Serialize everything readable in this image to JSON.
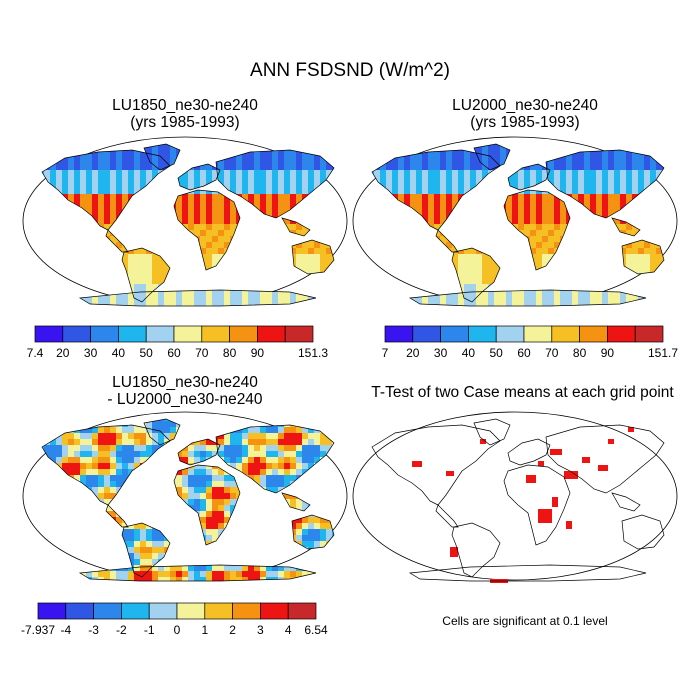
{
  "figure": {
    "title": "ANN FSDSND (W/m^2)"
  },
  "panels": [
    {
      "id": "lu1850",
      "title_line1": "LU1850_ne30-ne240",
      "title_line2": "(yrs 1985-1993)",
      "colorbar": {
        "labels": [
          "7.4",
          "20",
          "30",
          "40",
          "50",
          "60",
          "70",
          "80",
          "90",
          "151.3"
        ],
        "colors": [
          "#3a14f0",
          "#2f56e4",
          "#2d86ec",
          "#1fb6f0",
          "#a3d2f0",
          "#f5f39a",
          "#f6c024",
          "#f59212",
          "#ee1414",
          "#c8282a"
        ]
      }
    },
    {
      "id": "lu2000",
      "title_line1": "LU2000_ne30-ne240",
      "title_line2": "(yrs 1985-1993)",
      "colorbar": {
        "labels": [
          "7",
          "20",
          "30",
          "40",
          "50",
          "60",
          "70",
          "80",
          "90",
          "151.7"
        ],
        "colors": [
          "#3a14f0",
          "#2f56e4",
          "#2d86ec",
          "#1fb6f0",
          "#a3d2f0",
          "#f5f39a",
          "#f6c024",
          "#f59212",
          "#ee1414",
          "#c8282a"
        ]
      }
    },
    {
      "id": "diff",
      "title_line1": "LU1850_ne30-ne240",
      "title_line2": "- LU2000_ne30-ne240",
      "colorbar": {
        "labels": [
          "-7.937",
          "-4",
          "-3",
          "-2",
          "-1",
          "0",
          "1",
          "2",
          "3",
          "4",
          "6.54"
        ],
        "colors": [
          "#3a14f0",
          "#2f56e4",
          "#2d86ec",
          "#1fb6f0",
          "#a3d2f0",
          "#f5f39a",
          "#f6c024",
          "#f59212",
          "#ee1414",
          "#c8282a"
        ]
      }
    },
    {
      "id": "ttest",
      "title_line1": "T-Test of two Case means at each grid point",
      "note": "Cells are significant at 0.1 level"
    }
  ]
}
